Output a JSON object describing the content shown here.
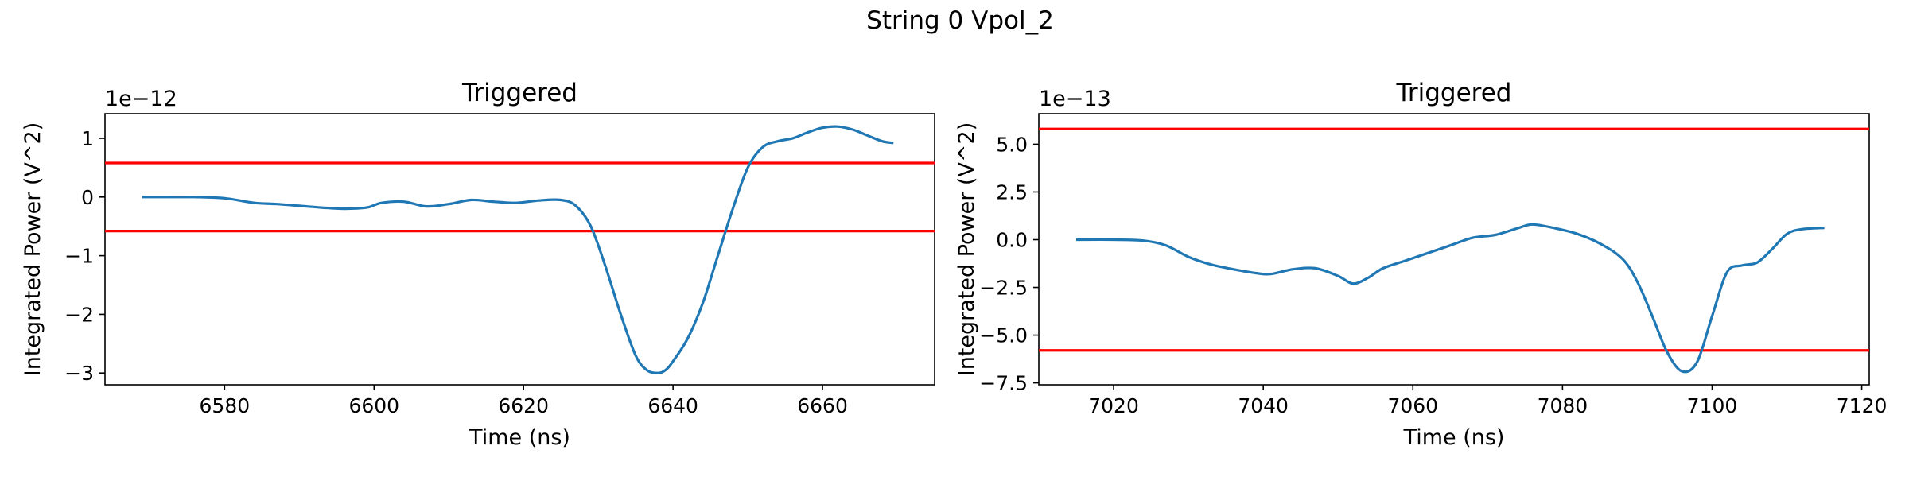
{
  "figure": {
    "suptitle": "String 0 Vpol_2"
  },
  "colors": {
    "signal": "#1f77b4",
    "threshold": "#ff0000",
    "axes": "#000000"
  },
  "chart_data": [
    {
      "type": "line",
      "title": "Triggered",
      "xlabel": "Time (ns)",
      "ylabel": "Integrated Power (V^2)",
      "offset_text": "1e−12",
      "scale": 1e-12,
      "xlim": [
        6564,
        6675
      ],
      "ylim": [
        -3.2,
        1.42
      ],
      "xticks": [
        6580,
        6600,
        6620,
        6640,
        6660
      ],
      "yticks": [
        1,
        0,
        -1,
        -2,
        -3
      ],
      "ytick_labels": [
        "1",
        "0",
        "−1",
        "−2",
        "−3"
      ],
      "thresholds": [
        0.58,
        -0.58
      ],
      "x": [
        6569,
        6572,
        6576,
        6580,
        6584,
        6587,
        6590,
        6593,
        6596,
        6599,
        6601,
        6604,
        6607,
        6610,
        6613,
        6616,
        6619,
        6622,
        6625,
        6627,
        6629,
        6631,
        6633,
        6635,
        6636.5,
        6638,
        6639,
        6640,
        6642,
        6644,
        6646,
        6648,
        6650,
        6652,
        6654,
        6656,
        6658,
        6660,
        6662,
        6664,
        6666,
        6668,
        6669.5
      ],
      "y": [
        0.0,
        0.0,
        0.0,
        -0.02,
        -0.1,
        -0.12,
        -0.15,
        -0.18,
        -0.2,
        -0.18,
        -0.1,
        -0.08,
        -0.16,
        -0.12,
        -0.05,
        -0.08,
        -0.1,
        -0.06,
        -0.05,
        -0.15,
        -0.5,
        -1.2,
        -2.0,
        -2.7,
        -2.95,
        -3.0,
        -2.95,
        -2.8,
        -2.4,
        -1.8,
        -1.0,
        -0.2,
        0.5,
        0.85,
        0.95,
        1.0,
        1.1,
        1.18,
        1.2,
        1.15,
        1.05,
        0.95,
        0.92
      ]
    },
    {
      "type": "line",
      "title": "Triggered",
      "xlabel": "Time (ns)",
      "ylabel": "Integrated Power (V^2)",
      "offset_text": "1e−13",
      "scale": 1e-13,
      "xlim": [
        7010,
        7121
      ],
      "ylim": [
        -7.6,
        6.6
      ],
      "xticks": [
        7020,
        7040,
        7060,
        7080,
        7100,
        7120
      ],
      "yticks": [
        5.0,
        2.5,
        0.0,
        -2.5,
        -5.0,
        -7.5
      ],
      "ytick_labels": [
        "5.0",
        "2.5",
        "0.0",
        "−2.5",
        "−5.0",
        "−7.5"
      ],
      "thresholds": [
        5.8,
        -5.8
      ],
      "x": [
        7015,
        7020,
        7024,
        7027,
        7030,
        7033,
        7036,
        7039,
        7041,
        7044,
        7047,
        7050,
        7052,
        7054,
        7056,
        7059,
        7062,
        7065,
        7068,
        7071,
        7074,
        7076,
        7079,
        7082,
        7085,
        7088,
        7090,
        7092,
        7094,
        7096,
        7098,
        7100,
        7102,
        7104,
        7106,
        7108,
        7110,
        7112,
        7115
      ],
      "y": [
        0.0,
        0.0,
        -0.05,
        -0.3,
        -0.9,
        -1.3,
        -1.55,
        -1.75,
        -1.8,
        -1.55,
        -1.5,
        -1.9,
        -2.3,
        -2.0,
        -1.5,
        -1.1,
        -0.7,
        -0.3,
        0.1,
        0.25,
        0.6,
        0.8,
        0.6,
        0.3,
        -0.2,
        -1.0,
        -2.2,
        -4.0,
        -5.9,
        -6.9,
        -6.4,
        -4.0,
        -1.7,
        -1.35,
        -1.2,
        -0.5,
        0.3,
        0.55,
        0.62
      ]
    }
  ]
}
